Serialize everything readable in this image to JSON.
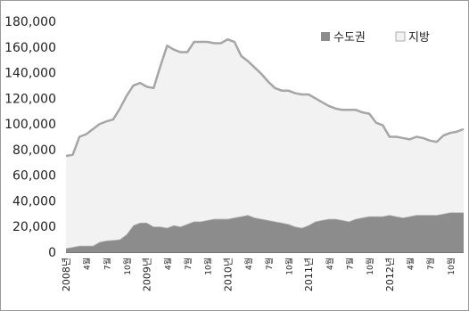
{
  "chart_data": {
    "type": "area",
    "stacked": true,
    "title": "",
    "xlabel": "",
    "ylabel": "",
    "ylim": [
      0,
      180000
    ],
    "y_ticks": [
      "180,000",
      "160,000",
      "140,000",
      "120,000",
      "100,000",
      "80,000",
      "60,000",
      "40,000",
      "20,000",
      "0"
    ],
    "y_tick_values": [
      180000,
      160000,
      140000,
      120000,
      100000,
      80000,
      60000,
      40000,
      20000,
      0
    ],
    "grid": false,
    "legend_position": "top-right",
    "x": [
      "2008-01",
      "2008-02",
      "2008-03",
      "2008-04",
      "2008-05",
      "2008-06",
      "2008-07",
      "2008-08",
      "2008-09",
      "2008-10",
      "2008-11",
      "2008-12",
      "2009-01",
      "2009-02",
      "2009-03",
      "2009-04",
      "2009-05",
      "2009-06",
      "2009-07",
      "2009-08",
      "2009-09",
      "2009-10",
      "2009-11",
      "2009-12",
      "2010-01",
      "2010-02",
      "2010-03",
      "2010-04",
      "2010-05",
      "2010-06",
      "2010-07",
      "2010-08",
      "2010-09",
      "2010-10",
      "2010-11",
      "2010-12",
      "2011-01",
      "2011-02",
      "2011-03",
      "2011-04",
      "2011-05",
      "2011-06",
      "2011-07",
      "2011-08",
      "2011-09",
      "2011-10",
      "2011-11",
      "2011-12",
      "2012-01",
      "2012-02",
      "2012-03",
      "2012-04",
      "2012-05",
      "2012-06",
      "2012-07",
      "2012-08",
      "2012-09",
      "2012-10",
      "2012-11",
      "2012-12"
    ],
    "x_tick_labels": [
      {
        "label": "2008년",
        "month": "2008-01"
      },
      {
        "label": "4월",
        "month": "2008-04"
      },
      {
        "label": "7월",
        "month": "2008-07"
      },
      {
        "label": "10월",
        "month": "2008-10"
      },
      {
        "label": "2009년",
        "month": "2009-01"
      },
      {
        "label": "4월",
        "month": "2009-04"
      },
      {
        "label": "7월",
        "month": "2009-07"
      },
      {
        "label": "10월",
        "month": "2009-10"
      },
      {
        "label": "2010년",
        "month": "2010-01"
      },
      {
        "label": "4월",
        "month": "2010-04"
      },
      {
        "label": "7월",
        "month": "2010-07"
      },
      {
        "label": "10월",
        "month": "2010-10"
      },
      {
        "label": "2011년",
        "month": "2011-01"
      },
      {
        "label": "4월",
        "month": "2011-04"
      },
      {
        "label": "7월",
        "month": "2011-07"
      },
      {
        "label": "10월",
        "month": "2011-10"
      },
      {
        "label": "2012년",
        "month": "2012-01"
      },
      {
        "label": "4월",
        "month": "2012-04"
      },
      {
        "label": "7월",
        "month": "2012-07"
      },
      {
        "label": "10월",
        "month": "2012-10"
      }
    ],
    "series": [
      {
        "name": "수도권",
        "color": "#8c8c8c",
        "values": [
          3000,
          4000,
          5000,
          5000,
          5000,
          8000,
          9000,
          9500,
          10000,
          14000,
          21000,
          23000,
          23000,
          20000,
          20000,
          19000,
          21000,
          20000,
          22000,
          24000,
          24000,
          25000,
          26000,
          26000,
          26000,
          27000,
          28000,
          29000,
          27000,
          26000,
          25000,
          24000,
          23000,
          22000,
          20000,
          19000,
          21000,
          24000,
          25000,
          26000,
          26000,
          25000,
          24000,
          26000,
          27000,
          28000,
          28000,
          28000,
          29000,
          28000,
          27000,
          28000,
          29000,
          29000,
          29000,
          29000,
          30000,
          31000,
          31000,
          31000
        ]
      },
      {
        "name": "지방",
        "color": "#f2f2f2",
        "values": [
          72000,
          72000,
          85000,
          87000,
          91000,
          92000,
          93000,
          94000,
          102000,
          108000,
          109000,
          109000,
          106000,
          108000,
          125000,
          142000,
          137000,
          136000,
          134000,
          140000,
          140000,
          139000,
          137000,
          137000,
          140000,
          137000,
          125000,
          120000,
          117000,
          113000,
          108000,
          104000,
          103000,
          104000,
          104000,
          104000,
          102000,
          96000,
          92000,
          88000,
          86000,
          86000,
          87000,
          85000,
          82000,
          80000,
          73000,
          71000,
          61000,
          62000,
          62000,
          60000,
          61000,
          60000,
          58000,
          57000,
          61000,
          62000,
          63000,
          65000
        ]
      }
    ]
  }
}
